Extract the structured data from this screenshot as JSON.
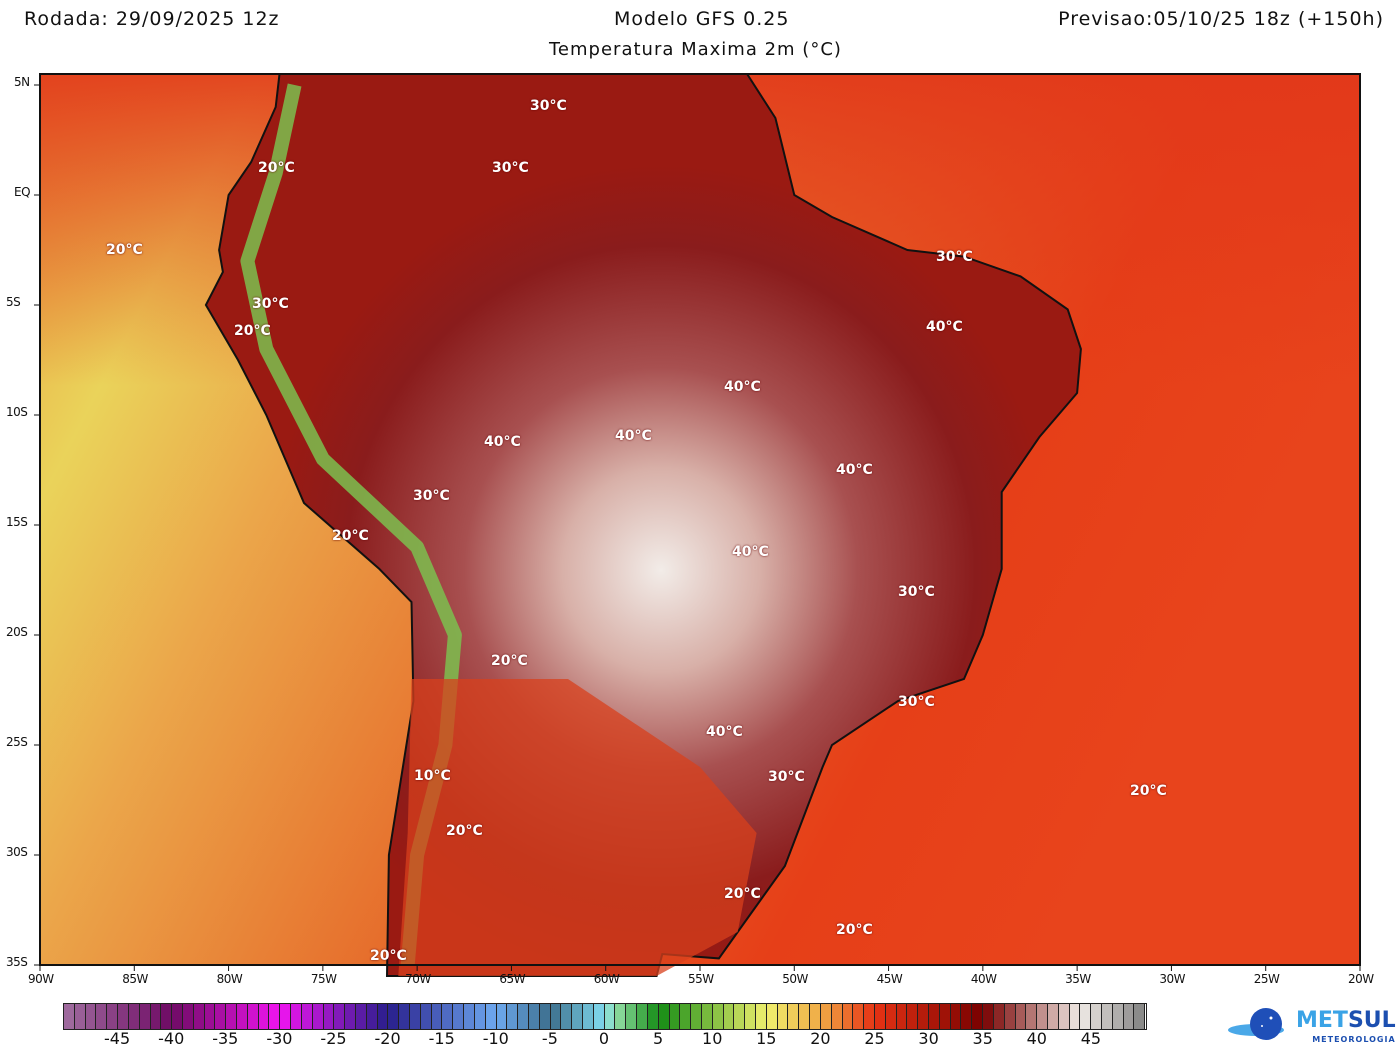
{
  "header": {
    "run": "Rodada: 29/09/2025 12z",
    "model": "Modelo GFS 0.25",
    "forecast": "Previsao:05/10/25 18z (+150h)",
    "subtitle": "Temperatura Maxima 2m (°C)"
  },
  "axes": {
    "lat_labels": [
      "5N",
      "EQ",
      "5S",
      "10S",
      "15S",
      "20S",
      "25S",
      "30S",
      "35S"
    ],
    "lon_labels": [
      "90W",
      "85W",
      "80W",
      "75W",
      "70W",
      "65W",
      "60W",
      "55W",
      "50W",
      "45W",
      "40W",
      "35W",
      "30W",
      "25W",
      "20W"
    ]
  },
  "contour_labels": [
    "30°C",
    "30°C",
    "20°C",
    "20°C",
    "30°C",
    "20°C",
    "30°C",
    "40°C",
    "40°C",
    "40°C",
    "40°C",
    "40°C",
    "30°C",
    "20°C",
    "40°C",
    "30°C",
    "20°C",
    "40°C",
    "30°C",
    "30°C",
    "10°C",
    "20°C",
    "20°C",
    "20°C",
    "20°C",
    "20°C"
  ],
  "colorbar": {
    "min": -50,
    "max": 50,
    "labels": [
      "-45",
      "-40",
      "-35",
      "-30",
      "-25",
      "-20",
      "-15",
      "-10",
      "-5",
      "0",
      "5",
      "10",
      "15",
      "20",
      "25",
      "30",
      "35",
      "40",
      "45"
    ]
  },
  "logo": {
    "name_a": "MET",
    "name_b": "SUL",
    "tagline": "METEOROLOGIA"
  },
  "colors": {
    "ocean_warm": "#e8401a",
    "ocean_cool": "#ecd558",
    "land_hot": "#8e1a1a",
    "land_extreme": "#efe5e0",
    "andes": "#6ab445"
  }
}
